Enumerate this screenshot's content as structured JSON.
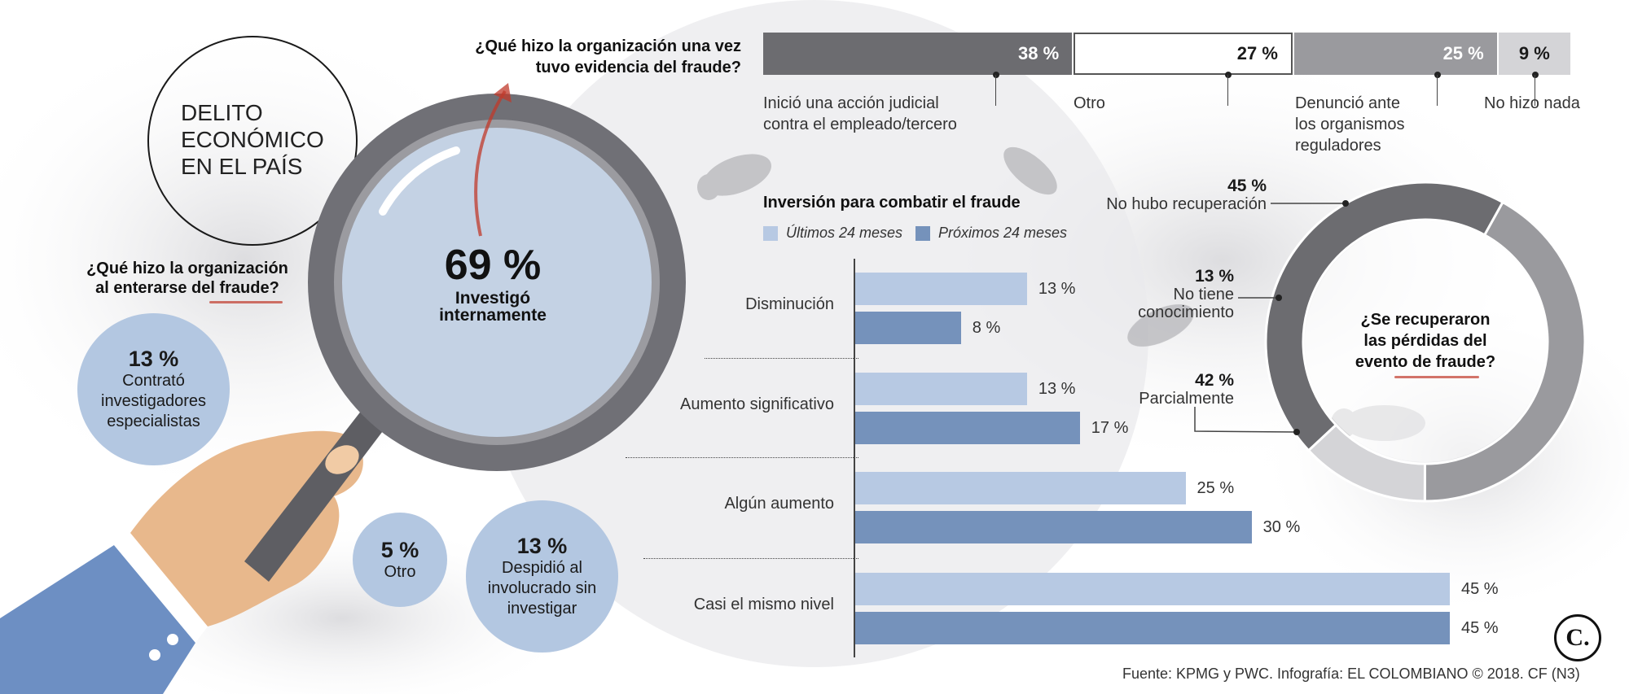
{
  "header": {
    "title_lines": [
      "DELITO",
      "ECONÓMICO",
      "EN EL PAÍS"
    ]
  },
  "magnifier": {
    "pct": "69 %",
    "label_lines": [
      "Investigó",
      "internamente"
    ]
  },
  "left_question": {
    "lines": [
      "¿Qué hizo la organización",
      "al enterarse del fraude?"
    ]
  },
  "bubbles": [
    {
      "pct": "13 %",
      "lines": [
        "Contrató",
        "investigadores",
        "especialistas"
      ]
    },
    {
      "pct": "5 %",
      "lines": [
        "Otro"
      ]
    },
    {
      "pct": "13 %",
      "lines": [
        "Despidió al",
        "involucrado sin",
        "investigar"
      ]
    }
  ],
  "colors": {
    "dark_gray": "#6c6c70",
    "white": "#ffffff",
    "mid_gray": "#9a9a9e",
    "light_gray": "#d4d4d7",
    "light_blue": "#b7c9e3",
    "dark_blue": "#7592bb",
    "accent_red": "#c0392b"
  },
  "chart_data": [
    {
      "type": "bar",
      "orientation": "horizontal-stacked",
      "title": "¿Qué hizo la organización una vez tuvo evidencia del fraude?",
      "title_lines": [
        "¿Qué hizo la organización una vez",
        "tuvo evidencia del fraude?"
      ],
      "segments": [
        {
          "value": 38,
          "value_label": "38 %",
          "label_lines": [
            "Inició una acción judicial",
            "contra el empleado/tercero"
          ],
          "color": "#6c6c70",
          "text_color": "#ffffff"
        },
        {
          "value": 27,
          "value_label": "27 %",
          "label_lines": [
            "Otro"
          ],
          "color": "#ffffff",
          "text_color": "#1a1a1a"
        },
        {
          "value": 25,
          "value_label": "25 %",
          "label_lines": [
            "Denunció ante",
            "los organismos",
            "reguladores"
          ],
          "color": "#9a9a9e",
          "text_color": "#ffffff"
        },
        {
          "value": 9,
          "value_label": "9 %",
          "label_lines": [
            "No hizo nada"
          ],
          "color": "#d4d4d7",
          "text_color": "#1a1a1a"
        }
      ]
    },
    {
      "type": "bar",
      "orientation": "horizontal",
      "title": "Inversión para combatir el fraude",
      "categories": [
        "Disminución",
        "Aumento significativo",
        "Algún aumento",
        "Casi el mismo nivel"
      ],
      "series": [
        {
          "name": "Últimos 24 meses",
          "values": [
            13,
            13,
            25,
            45
          ],
          "value_labels": [
            "13 %",
            "13 %",
            "25 %",
            "45 %"
          ],
          "color": "#b7c9e3"
        },
        {
          "name": "Próximos 24 meses",
          "values": [
            8,
            17,
            30,
            45
          ],
          "value_labels": [
            "8 %",
            "17 %",
            "30 %",
            "45 %"
          ],
          "color": "#7592bb"
        }
      ],
      "xlim": [
        0,
        45
      ]
    },
    {
      "type": "pie",
      "donut": true,
      "title": "¿Se recuperaron las pérdidas del evento de fraude?",
      "title_lines": [
        "¿Se recuperaron",
        "las pérdidas del",
        "evento de fraude?"
      ],
      "slices": [
        {
          "value": 45,
          "value_label": "45 %",
          "label_lines": [
            "No hubo recuperación"
          ],
          "color": "#6c6c70"
        },
        {
          "value": 42,
          "value_label": "42 %",
          "label_lines": [
            "Parcialmente"
          ],
          "color": "#9a9a9e"
        },
        {
          "value": 13,
          "value_label": "13 %",
          "label_lines": [
            "No tiene",
            "conocimiento"
          ],
          "color": "#d4d4d7"
        }
      ]
    }
  ],
  "footer": {
    "source": "Fuente: KPMG y PWC. Infografía: EL COLOMBIANO © 2018. CF (N3)",
    "logo": "C."
  }
}
